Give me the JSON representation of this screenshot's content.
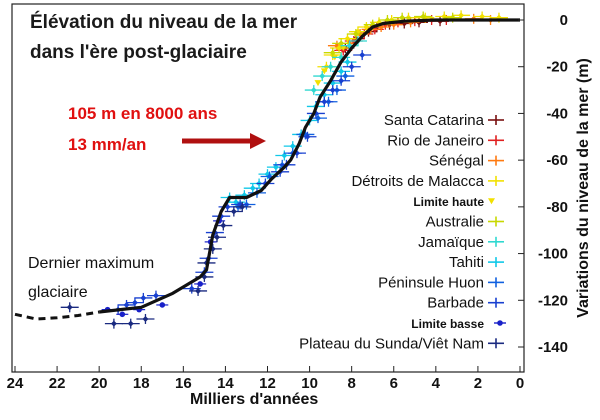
{
  "chart_data": {
    "type": "scatter",
    "title_lines": [
      "Élévation du niveau de la mer",
      "dans l'ère post-glaciaire"
    ],
    "xlabel": "Milliers d'années",
    "ylabel": "Variations du niveau de la mer (m)",
    "xlim": [
      24,
      0
    ],
    "ylim": [
      -150,
      5
    ],
    "x_ticks": [
      "24",
      "22",
      "20",
      "18",
      "16",
      "14",
      "12",
      "10",
      "8",
      "6",
      "4",
      "2",
      "0"
    ],
    "y_ticks": [
      "0",
      "-20",
      "-40",
      "-60",
      "-80",
      "-100",
      "-120",
      "-140"
    ],
    "annotations": {
      "rate_line1": "105 m en 8000 ans",
      "rate_line2": "13 mm/an",
      "lgm_line1": "Dernier maximum",
      "lgm_line2": "glaciaire"
    },
    "trend_curve": [
      [
        20,
        -125
      ],
      [
        18,
        -123
      ],
      [
        16.5,
        -117
      ],
      [
        15.2,
        -110
      ],
      [
        14.9,
        -107
      ],
      [
        14.6,
        -92
      ],
      [
        14.2,
        -82
      ],
      [
        13.8,
        -76
      ],
      [
        13,
        -76
      ],
      [
        12.3,
        -73
      ],
      [
        11.8,
        -68
      ],
      [
        11.2,
        -63
      ],
      [
        10.9,
        -60
      ],
      [
        10.5,
        -53
      ],
      [
        10.2,
        -46
      ],
      [
        9.8,
        -40
      ],
      [
        9.5,
        -33
      ],
      [
        9.0,
        -26
      ],
      [
        8.5,
        -18
      ],
      [
        8.0,
        -12
      ],
      [
        7.5,
        -7
      ],
      [
        7.0,
        -3
      ],
      [
        6.5,
        -1.5
      ],
      [
        5.5,
        -0.5
      ],
      [
        4,
        0
      ],
      [
        2,
        0
      ],
      [
        0,
        0
      ]
    ],
    "trend_extrapolated": [
      [
        24,
        -126
      ],
      [
        23,
        -128
      ],
      [
        22,
        -127.5
      ],
      [
        21,
        -126.5
      ],
      [
        20,
        -125
      ]
    ],
    "series": [
      {
        "name": "Santa Catarina",
        "color": "#7a1010",
        "marker": "cross",
        "points": [
          [
            8.3,
            -12
          ],
          [
            7.8,
            -8
          ],
          [
            7.2,
            -5
          ],
          [
            6.8,
            -3
          ],
          [
            6.2,
            -2
          ],
          [
            5.5,
            -1.5
          ],
          [
            4.8,
            -1
          ],
          [
            3.8,
            -0.5
          ]
        ]
      },
      {
        "name": "Rio de Janeiro",
        "color": "#e02020",
        "marker": "cross",
        "points": [
          [
            8.4,
            -13
          ],
          [
            7.9,
            -9
          ],
          [
            7.4,
            -6
          ],
          [
            6.9,
            -4
          ],
          [
            6.4,
            -2
          ],
          [
            5.8,
            -1
          ],
          [
            5.0,
            -0.5
          ],
          [
            4.2,
            0
          ],
          [
            3.5,
            0
          ]
        ]
      },
      {
        "name": "Sénégal",
        "color": "#ff7a10",
        "marker": "cross",
        "points": [
          [
            8.7,
            -11
          ],
          [
            8.1,
            -10
          ],
          [
            7.6,
            -6
          ],
          [
            7.1,
            -4
          ],
          [
            6.6,
            -3
          ],
          [
            6.0,
            -2
          ],
          [
            5.2,
            -1
          ],
          [
            2.2,
            0.5
          ],
          [
            1.4,
            0
          ]
        ]
      },
      {
        "name": "Détroits de Malacca",
        "color": "#f2e000",
        "marker": "cross",
        "points": [
          [
            9.2,
            -20
          ],
          [
            8.9,
            -15
          ],
          [
            8.6,
            -12
          ],
          [
            8.2,
            -8
          ],
          [
            7.7,
            -5
          ],
          [
            7.3,
            -3
          ],
          [
            6.7,
            -1
          ],
          [
            6.1,
            0
          ],
          [
            5.3,
            1
          ],
          [
            4.5,
            1
          ],
          [
            3.6,
            1.5
          ],
          [
            2.8,
            2
          ],
          [
            1.8,
            1.5
          ],
          [
            1.0,
            1
          ]
        ]
      },
      {
        "name": "Limite haute",
        "color": "#f2e000",
        "marker": "tri",
        "points": [
          [
            9.6,
            -27
          ],
          [
            9.3,
            -22
          ],
          [
            8.8,
            -16
          ],
          [
            8.4,
            -12
          ]
        ]
      },
      {
        "name": "Australie",
        "color": "#c8d800",
        "marker": "cross",
        "points": [
          [
            8.9,
            -14
          ],
          [
            8.5,
            -10
          ],
          [
            7.8,
            -6
          ],
          [
            7.0,
            -2
          ],
          [
            6.3,
            0
          ],
          [
            5.6,
            1
          ],
          [
            4.6,
            1.5
          ],
          [
            3.2,
            1
          ]
        ]
      },
      {
        "name": "Jamaïque",
        "color": "#30d8d0",
        "marker": "cross",
        "points": [
          [
            9.8,
            -30
          ],
          [
            9.4,
            -24
          ],
          [
            9.0,
            -20
          ],
          [
            8.5,
            -16
          ],
          [
            8.1,
            -11
          ],
          [
            7.7,
            -9
          ]
        ]
      },
      {
        "name": "Tahiti",
        "color": "#10c8e8",
        "marker": "cross",
        "points": [
          [
            13.8,
            -76
          ],
          [
            13.5,
            -78
          ],
          [
            13.1,
            -75
          ],
          [
            12.7,
            -72
          ],
          [
            12.4,
            -70
          ],
          [
            12.0,
            -66
          ],
          [
            11.6,
            -63
          ],
          [
            11.2,
            -58
          ],
          [
            10.8,
            -54
          ],
          [
            10.4,
            -49
          ],
          [
            10.0,
            -43
          ],
          [
            9.7,
            -37
          ],
          [
            9.3,
            -32
          ],
          [
            8.9,
            -27
          ],
          [
            8.5,
            -22
          ],
          [
            8.2,
            -18
          ]
        ]
      },
      {
        "name": "Péninsule Huon",
        "color": "#1060e0",
        "marker": "cross",
        "points": [
          [
            13.4,
            -80
          ],
          [
            13.0,
            -79
          ],
          [
            12.5,
            -74
          ],
          [
            11.9,
            -67
          ],
          [
            11.3,
            -62
          ],
          [
            10.8,
            -57
          ],
          [
            10.2,
            -49
          ],
          [
            9.6,
            -42
          ],
          [
            9.1,
            -35
          ],
          [
            8.7,
            -30
          ],
          [
            8.3,
            -24
          ]
        ]
      },
      {
        "name": "Barbade",
        "color": "#1840d0",
        "marker": "cross",
        "points": [
          [
            19.1,
            -124
          ],
          [
            18.7,
            -122
          ],
          [
            18.3,
            -121
          ],
          [
            17.9,
            -119
          ],
          [
            17.3,
            -118
          ],
          [
            15.6,
            -115
          ],
          [
            15.0,
            -108
          ],
          [
            14.8,
            -102
          ],
          [
            14.5,
            -91
          ],
          [
            14.2,
            -84
          ],
          [
            13.9,
            -80
          ],
          [
            13.3,
            -79
          ],
          [
            12.1,
            -70
          ],
          [
            11.4,
            -65
          ],
          [
            11.1,
            -62
          ],
          [
            10.6,
            -57
          ],
          [
            10.1,
            -50
          ],
          [
            9.7,
            -40
          ],
          [
            9.3,
            -35
          ],
          [
            8.9,
            -30
          ],
          [
            8.5,
            -26
          ],
          [
            8.0,
            -20
          ],
          [
            7.5,
            -15
          ]
        ]
      },
      {
        "name": "Limite basse",
        "color": "#1820c8",
        "marker": "dot",
        "points": [
          [
            19.6,
            -124
          ],
          [
            18.9,
            -126
          ],
          [
            18.1,
            -124
          ],
          [
            17.0,
            -122
          ],
          [
            15.2,
            -113
          ],
          [
            14.7,
            -95
          ],
          [
            14.3,
            -86
          ]
        ]
      },
      {
        "name": "Plateau du Sunda/Viêt Nam",
        "color": "#1a2a80",
        "marker": "cross",
        "points": [
          [
            21.4,
            -123
          ],
          [
            19.3,
            -130
          ],
          [
            18.5,
            -130
          ],
          [
            17.8,
            -128
          ],
          [
            15.3,
            -116
          ],
          [
            15.0,
            -110
          ],
          [
            14.9,
            -104
          ],
          [
            14.6,
            -98
          ],
          [
            14.4,
            -93
          ],
          [
            14.1,
            -88
          ],
          [
            13.6,
            -82
          ],
          [
            13.2,
            -80
          ]
        ]
      }
    ]
  }
}
